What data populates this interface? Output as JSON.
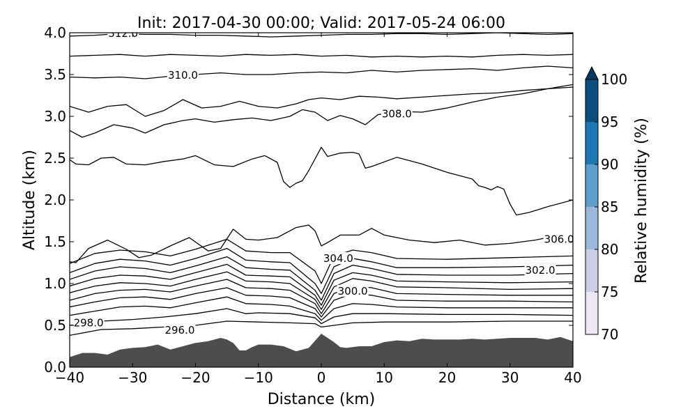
{
  "chart_data": {
    "type": "contour",
    "title": "Init: 2017-04-30 00:00; Valid: 2017-05-24 06:00",
    "xlabel": "Distance (km)",
    "ylabel": "Altitude (km)",
    "xlim": [
      -40,
      40
    ],
    "ylim": [
      0.0,
      4.0
    ],
    "x_ticks": [
      -40,
      -30,
      -20,
      -10,
      0,
      10,
      20,
      30,
      40
    ],
    "x_tick_labels": [
      "−40",
      "−30",
      "−20",
      "−10",
      "0",
      "10",
      "20",
      "30",
      "40"
    ],
    "y_ticks": [
      0.0,
      0.5,
      1.0,
      1.5,
      2.0,
      2.5,
      3.0,
      3.5,
      4.0
    ],
    "y_tick_labels": [
      "0.0",
      "0.5",
      "1.0",
      "1.5",
      "2.0",
      "2.5",
      "3.0",
      "3.5",
      "4.0"
    ],
    "grid": false,
    "terrain": {
      "color": "#4d4d4d",
      "x": [
        -40,
        -38,
        -36,
        -34,
        -32,
        -30,
        -28,
        -26,
        -24,
        -22,
        -20,
        -18,
        -16,
        -15,
        -14,
        -13,
        -12,
        -11,
        -10,
        -8,
        -6,
        -4,
        -2,
        0,
        1,
        2,
        3,
        4,
        6,
        8,
        10,
        12,
        14,
        16,
        18,
        20,
        22,
        24,
        26,
        28,
        30,
        32,
        34,
        36,
        38,
        40
      ],
      "y": [
        0.12,
        0.17,
        0.17,
        0.15,
        0.21,
        0.23,
        0.24,
        0.27,
        0.21,
        0.25,
        0.29,
        0.31,
        0.35,
        0.33,
        0.29,
        0.2,
        0.2,
        0.24,
        0.27,
        0.27,
        0.25,
        0.19,
        0.23,
        0.4,
        0.35,
        0.3,
        0.24,
        0.23,
        0.25,
        0.25,
        0.3,
        0.32,
        0.31,
        0.34,
        0.33,
        0.33,
        0.33,
        0.34,
        0.33,
        0.34,
        0.35,
        0.35,
        0.35,
        0.33,
        0.36,
        0.31
      ]
    },
    "contours": [
      {
        "x": [
          -40,
          -35,
          -30,
          -25,
          -20,
          -15,
          -10,
          -5,
          -1,
          0,
          2,
          5,
          10,
          20,
          30,
          40
        ],
        "y": [
          0.38,
          0.45,
          0.46,
          0.48,
          0.5,
          0.55,
          0.54,
          0.53,
          0.52,
          0.48,
          0.5,
          0.53,
          0.54,
          0.54,
          0.55,
          0.55
        ]
      },
      {
        "level": 298.0,
        "x": [
          -40,
          -35,
          -30,
          -25,
          -20,
          -15,
          -12,
          -10,
          -5,
          -1,
          0,
          2,
          5,
          10,
          20,
          30,
          40
        ],
        "y": [
          0.5,
          0.55,
          0.57,
          0.6,
          0.64,
          0.7,
          0.64,
          0.65,
          0.64,
          0.59,
          0.52,
          0.6,
          0.64,
          0.64,
          0.63,
          0.63,
          0.62
        ]
      },
      {
        "x": [
          -40,
          -36,
          -32,
          -28,
          -24,
          -20,
          -15,
          -12,
          -8,
          -5,
          -1,
          0,
          2,
          5,
          8,
          12,
          20,
          30,
          40
        ],
        "y": [
          0.62,
          0.67,
          0.72,
          0.73,
          0.71,
          0.77,
          0.84,
          0.76,
          0.75,
          0.73,
          0.64,
          0.56,
          0.7,
          0.76,
          0.75,
          0.72,
          0.71,
          0.71,
          0.71
        ]
      },
      {
        "x": [
          -40,
          -36,
          -32,
          -28,
          -24,
          -20,
          -15,
          -12,
          -8,
          -5,
          -1,
          0,
          2,
          5,
          8,
          12,
          20,
          30,
          40
        ],
        "y": [
          0.72,
          0.78,
          0.83,
          0.84,
          0.81,
          0.88,
          0.95,
          0.86,
          0.85,
          0.83,
          0.7,
          0.6,
          0.8,
          0.88,
          0.86,
          0.8,
          0.79,
          0.79,
          0.78
        ]
      },
      {
        "level": 300.0,
        "x": [
          -40,
          -36,
          -32,
          -28,
          -24,
          -20,
          -15,
          -12,
          -8,
          -5,
          -1,
          0,
          2,
          5,
          8,
          12,
          20,
          30,
          40
        ],
        "y": [
          0.8,
          0.88,
          0.92,
          0.93,
          0.9,
          0.97,
          1.05,
          0.95,
          0.94,
          0.92,
          0.76,
          0.64,
          0.88,
          0.97,
          0.95,
          0.88,
          0.87,
          0.86,
          0.86
        ]
      },
      {
        "x": [
          -40,
          -36,
          -32,
          -28,
          -24,
          -20,
          -15,
          -12,
          -8,
          -5,
          -1,
          0,
          2,
          5,
          8,
          12,
          20,
          30,
          40
        ],
        "y": [
          0.89,
          0.97,
          1.01,
          1.0,
          0.97,
          1.05,
          1.14,
          1.03,
          1.02,
          1.0,
          0.81,
          0.69,
          0.96,
          1.06,
          1.03,
          0.96,
          0.95,
          0.93,
          0.94
        ]
      },
      {
        "x": [
          -40,
          -36,
          -32,
          -28,
          -24,
          -20,
          -15,
          -12,
          -8,
          -5,
          -1,
          0,
          2,
          5,
          8,
          12,
          20,
          30,
          40
        ],
        "y": [
          0.97,
          1.06,
          1.1,
          1.09,
          1.05,
          1.13,
          1.23,
          1.1,
          1.09,
          1.08,
          0.86,
          0.74,
          1.04,
          1.13,
          1.1,
          1.03,
          1.02,
          1.01,
          1.02
        ]
      },
      {
        "level": 302.0,
        "x": [
          -40,
          -36,
          -32,
          -28,
          -24,
          -20,
          -15,
          -12,
          -8,
          -5,
          -1,
          0,
          2,
          5,
          8,
          12,
          20,
          30,
          40
        ],
        "y": [
          1.05,
          1.15,
          1.2,
          1.18,
          1.13,
          1.21,
          1.32,
          1.19,
          1.17,
          1.16,
          0.92,
          0.8,
          1.12,
          1.22,
          1.18,
          1.11,
          1.1,
          1.1,
          1.12
        ]
      },
      {
        "x": [
          -40,
          -36,
          -32,
          -28,
          -24,
          -20,
          -15,
          -12,
          -8,
          -5,
          -1,
          0,
          2,
          5,
          8,
          12,
          20,
          30,
          40
        ],
        "y": [
          1.13,
          1.24,
          1.29,
          1.27,
          1.22,
          1.3,
          1.42,
          1.28,
          1.26,
          1.25,
          1.0,
          0.88,
          1.2,
          1.3,
          1.26,
          1.19,
          1.19,
          1.2,
          1.22
        ]
      },
      {
        "level": 304.0,
        "x": [
          -40,
          -36,
          -32,
          -28,
          -24,
          -20,
          -15,
          -12,
          -8,
          -5,
          -1,
          0,
          2,
          5,
          8,
          12,
          20,
          30,
          40
        ],
        "y": [
          1.24,
          1.36,
          1.4,
          1.38,
          1.33,
          1.41,
          1.53,
          1.39,
          1.37,
          1.37,
          1.15,
          1.0,
          1.33,
          1.4,
          1.37,
          1.3,
          1.29,
          1.31,
          1.33
        ]
      },
      {
        "level": 306.0,
        "x": [
          -40,
          -39,
          -37,
          -34,
          -31,
          -29,
          -27,
          -24,
          -21,
          -18,
          -16,
          -14,
          -12,
          -10,
          -7,
          -4,
          -2,
          -1,
          0,
          1,
          3,
          6,
          8,
          10,
          14,
          18,
          22,
          26,
          30,
          34,
          36,
          40
        ],
        "y": [
          1.26,
          1.25,
          1.42,
          1.52,
          1.41,
          1.31,
          1.34,
          1.45,
          1.55,
          1.39,
          1.42,
          1.65,
          1.53,
          1.52,
          1.55,
          1.67,
          1.7,
          1.63,
          1.45,
          1.49,
          1.58,
          1.58,
          1.66,
          1.58,
          1.52,
          1.49,
          1.52,
          1.46,
          1.48,
          1.52,
          1.55,
          1.55
        ]
      },
      {
        "x": [
          -40,
          -39,
          -37,
          -35,
          -33,
          -31,
          -28,
          -25,
          -22,
          -20,
          -17,
          -14,
          -11,
          -9,
          -7,
          -6,
          -5,
          -4,
          -3,
          -2,
          0,
          1,
          3,
          5,
          6,
          7,
          8,
          12,
          16,
          20,
          24,
          25,
          26,
          27,
          28,
          29,
          30,
          31,
          33,
          36,
          40
        ],
        "y": [
          2.48,
          2.43,
          2.42,
          2.5,
          2.51,
          2.43,
          2.42,
          2.46,
          2.49,
          2.53,
          2.42,
          2.4,
          2.49,
          2.53,
          2.45,
          2.22,
          2.15,
          2.2,
          2.23,
          2.35,
          2.63,
          2.52,
          2.56,
          2.57,
          2.55,
          2.38,
          2.4,
          2.51,
          2.43,
          2.33,
          2.25,
          2.17,
          2.15,
          2.12,
          2.16,
          2.13,
          1.95,
          1.82,
          1.85,
          1.92,
          2.0
        ]
      },
      {
        "level": 308.0,
        "x": [
          -40,
          -38,
          -36,
          -33,
          -30,
          -28,
          -25,
          -22,
          -20,
          -17,
          -14,
          -11,
          -8,
          -5,
          -3,
          -1,
          1,
          3,
          5,
          7,
          9,
          12,
          16,
          20,
          24,
          28,
          32,
          36,
          40
        ],
        "y": [
          2.83,
          2.75,
          2.8,
          2.9,
          2.86,
          2.8,
          2.9,
          2.95,
          2.97,
          2.93,
          2.96,
          2.98,
          2.95,
          3.0,
          3.08,
          3.05,
          2.95,
          3.01,
          2.97,
          2.9,
          3.02,
          3.06,
          3.05,
          3.1,
          3.17,
          3.23,
          3.27,
          3.33,
          3.38
        ]
      },
      {
        "x": [
          -40,
          -37,
          -34,
          -31,
          -28,
          -25,
          -22,
          -19,
          -16,
          -13,
          -10,
          -7,
          -4,
          -2,
          0,
          3,
          6,
          9,
          12,
          16,
          20,
          24,
          28,
          32,
          36,
          40
        ],
        "y": [
          3.12,
          3.05,
          3.12,
          3.14,
          3.0,
          3.07,
          3.2,
          3.1,
          3.12,
          3.18,
          3.12,
          3.1,
          3.15,
          3.2,
          3.22,
          3.2,
          3.24,
          3.23,
          3.21,
          3.23,
          3.25,
          3.27,
          3.28,
          3.31,
          3.33,
          3.35
        ]
      },
      {
        "level": 310.0,
        "x": [
          -40,
          -36,
          -32,
          -28,
          -24,
          -20,
          -16,
          -12,
          -8,
          -4,
          0,
          4,
          8,
          12,
          16,
          20,
          24,
          28,
          32,
          36,
          40
        ],
        "y": [
          3.47,
          3.46,
          3.47,
          3.45,
          3.48,
          3.5,
          3.52,
          3.5,
          3.5,
          3.52,
          3.53,
          3.52,
          3.55,
          3.53,
          3.55,
          3.56,
          3.57,
          3.55,
          3.58,
          3.6,
          3.58
        ]
      },
      {
        "x": [
          -40,
          -36,
          -32,
          -28,
          -24,
          -20,
          -16,
          -12,
          -8,
          -4,
          0,
          4,
          8,
          12,
          16,
          20,
          24,
          28,
          32,
          36,
          40
        ],
        "y": [
          3.72,
          3.73,
          3.74,
          3.72,
          3.74,
          3.73,
          3.72,
          3.74,
          3.73,
          3.74,
          3.72,
          3.73,
          3.71,
          3.72,
          3.71,
          3.72,
          3.71,
          3.73,
          3.74,
          3.73,
          3.74
        ]
      },
      {
        "level": 312.0,
        "x": [
          -40,
          -36,
          -32,
          -28,
          -24,
          -20,
          -16,
          -12,
          -8,
          -4,
          0,
          4,
          8,
          12,
          16,
          20,
          24,
          28,
          32,
          36,
          40
        ],
        "y": [
          3.96,
          3.97,
          3.99,
          3.98,
          3.98,
          3.97,
          3.97,
          3.96,
          3.95,
          3.96,
          3.97,
          3.98,
          3.98,
          3.99,
          3.99,
          3.98,
          3.99,
          4.0,
          3.99,
          3.98,
          3.99
        ]
      }
    ],
    "contour_labels": [
      {
        "text": "312.0",
        "x": -31.5,
        "y": 3.99
      },
      {
        "text": "310.0",
        "x": -22.0,
        "y": 3.49
      },
      {
        "text": "308.0",
        "x": 12.0,
        "y": 3.03
      },
      {
        "text": "306.0",
        "x": 37.8,
        "y": 1.53
      },
      {
        "text": "304.0",
        "x": 2.7,
        "y": 1.3
      },
      {
        "text": "302.0",
        "x": 34.8,
        "y": 1.16
      },
      {
        "text": "300.0",
        "x": 5.0,
        "y": 0.91
      },
      {
        "text": "298.0",
        "x": -37.0,
        "y": 0.53
      },
      {
        "text": "296.0",
        "x": -22.5,
        "y": 0.44
      }
    ],
    "colorbar": {
      "label": "Relative humidity (%)",
      "ticks": [
        "100",
        "95",
        "90",
        "85",
        "80",
        "75",
        "70"
      ],
      "bands": [
        {
          "from": 70,
          "to": 75,
          "color": "#ece7f2"
        },
        {
          "from": 75,
          "to": 80,
          "color": "#cbcfe5"
        },
        {
          "from": 80,
          "to": 85,
          "color": "#9bb8da"
        },
        {
          "from": 85,
          "to": 90,
          "color": "#5e9fcb"
        },
        {
          "from": 90,
          "to": 95,
          "color": "#1c77b3"
        },
        {
          "from": 95,
          "to": 100,
          "color": "#0c4f7f"
        },
        {
          "from": 100,
          "to": 105,
          "color": "#08395f"
        }
      ]
    }
  }
}
